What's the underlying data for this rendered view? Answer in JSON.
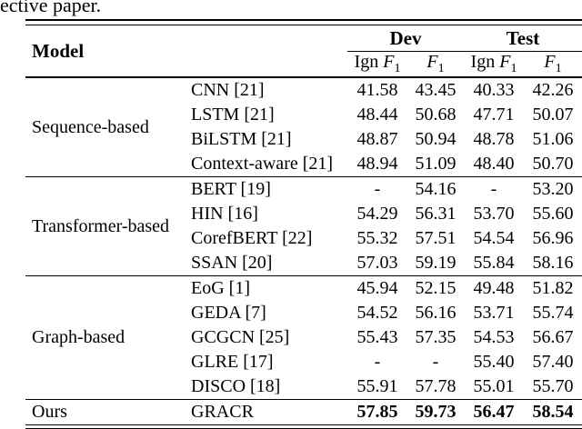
{
  "page": {
    "caption_fragment": "ective paper."
  },
  "table": {
    "header": {
      "model": "Model",
      "dev": "Dev",
      "test": "Test",
      "subcols": [
        {
          "pre": "Ign ",
          "f": "F",
          "sub": "1"
        },
        {
          "pre": "",
          "f": "F",
          "sub": "1"
        },
        {
          "pre": "Ign ",
          "f": "F",
          "sub": "1"
        },
        {
          "pre": "",
          "f": "F",
          "sub": "1"
        }
      ]
    },
    "groups": [
      {
        "label": "Sequence-based",
        "rows": [
          {
            "model": "CNN [21]",
            "dev_ign": "41.58",
            "dev_f1": "43.45",
            "test_ign": "40.33",
            "test_f1": "42.26"
          },
          {
            "model": "LSTM [21]",
            "dev_ign": "48.44",
            "dev_f1": "50.68",
            "test_ign": "47.71",
            "test_f1": "50.07"
          },
          {
            "model": "BiLSTM [21]",
            "dev_ign": "48.87",
            "dev_f1": "50.94",
            "test_ign": "48.78",
            "test_f1": "51.06"
          },
          {
            "model": "Context-aware [21]",
            "dev_ign": "48.94",
            "dev_f1": "51.09",
            "test_ign": "48.40",
            "test_f1": "50.70"
          }
        ]
      },
      {
        "label": "Transformer-based",
        "rows": [
          {
            "model": "BERT [19]",
            "dev_ign": "-",
            "dev_f1": "54.16",
            "test_ign": "-",
            "test_f1": "53.20"
          },
          {
            "model": "HIN [16]",
            "dev_ign": "54.29",
            "dev_f1": "56.31",
            "test_ign": "53.70",
            "test_f1": "55.60"
          },
          {
            "model": "CorefBERT [22]",
            "dev_ign": "55.32",
            "dev_f1": "57.51",
            "test_ign": "54.54",
            "test_f1": "56.96"
          },
          {
            "model": "SSAN [20]",
            "dev_ign": "57.03",
            "dev_f1": "59.19",
            "test_ign": "55.84",
            "test_f1": "58.16"
          }
        ]
      },
      {
        "label": "Graph-based",
        "rows": [
          {
            "model": "EoG [1]",
            "dev_ign": "45.94",
            "dev_f1": "52.15",
            "test_ign": "49.48",
            "test_f1": "51.82"
          },
          {
            "model": "GEDA [7]",
            "dev_ign": "54.52",
            "dev_f1": "56.16",
            "test_ign": "53.71",
            "test_f1": "55.74"
          },
          {
            "model": "GCGCN [25]",
            "dev_ign": "55.43",
            "dev_f1": "57.35",
            "test_ign": "54.53",
            "test_f1": "56.67"
          },
          {
            "model": "GLRE [17]",
            "dev_ign": "-",
            "dev_f1": "-",
            "test_ign": "55.40",
            "test_f1": "57.40"
          },
          {
            "model": "DISCO [18]",
            "dev_ign": "55.91",
            "dev_f1": "57.78",
            "test_ign": "55.01",
            "test_f1": "55.70"
          }
        ]
      },
      {
        "label": "Ours",
        "rows": [
          {
            "model": "GRACR",
            "dev_ign": "57.85",
            "dev_f1": "59.73",
            "test_ign": "56.47",
            "test_f1": "58.54"
          }
        ]
      }
    ]
  }
}
